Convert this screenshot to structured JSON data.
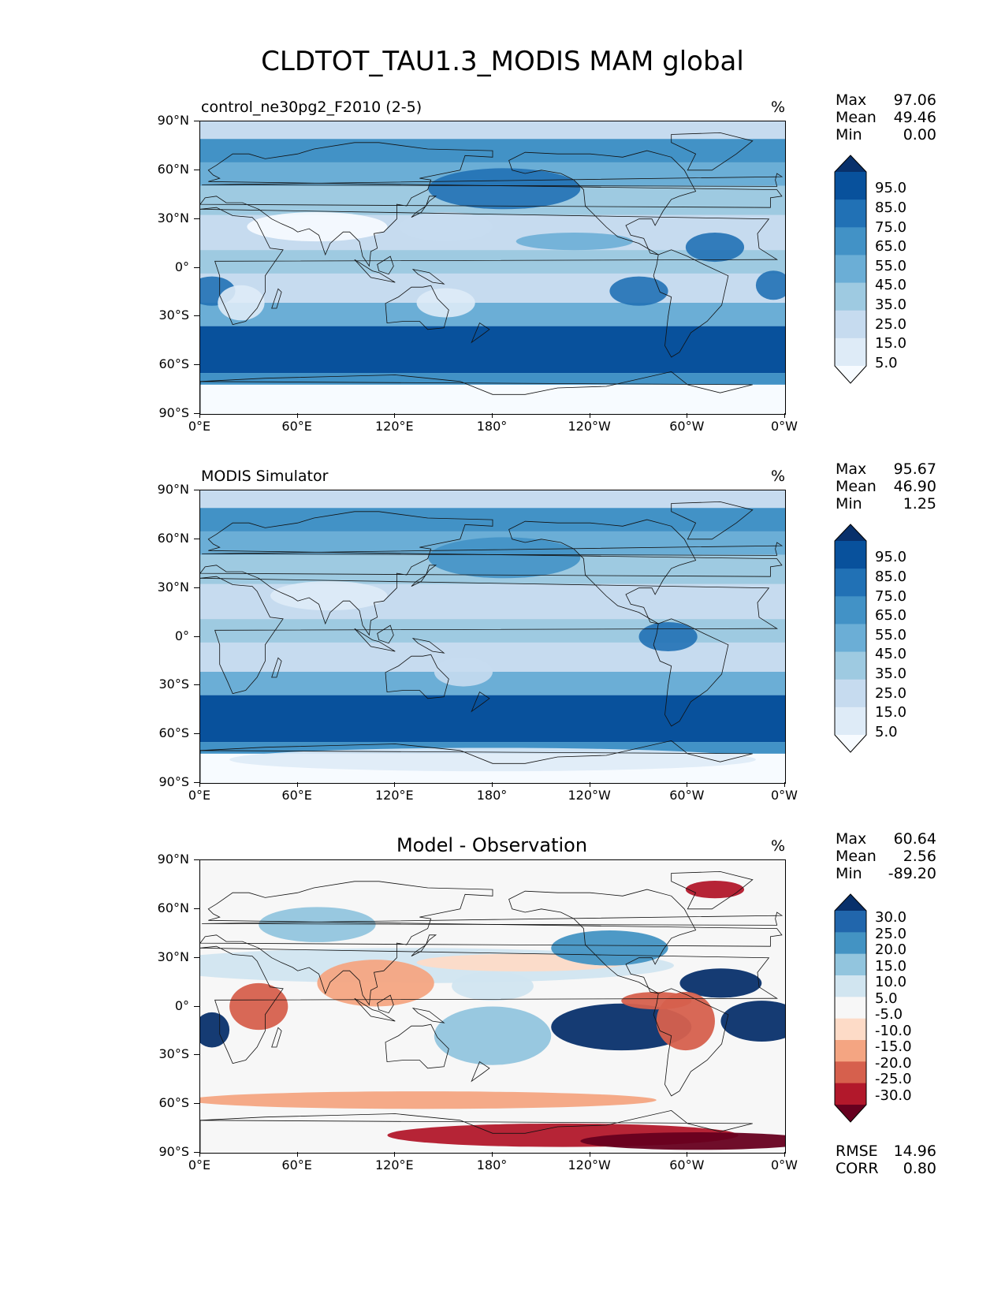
{
  "figure_title": "CLDTOT_TAU1.3_MODIS MAM global",
  "lat_labels": [
    "90°N",
    "60°N",
    "30°N",
    "0°",
    "30°S",
    "60°S",
    "90°S"
  ],
  "lon_labels": [
    "0°E",
    "60°E",
    "120°E",
    "180°",
    "120°W",
    "60°W",
    "0°W"
  ],
  "panels": [
    {
      "title": "control_ne30pg2_F2010 (2-5)",
      "title_style": "left",
      "units": "%",
      "stats": [
        {
          "label": "Max",
          "value": "97.06"
        },
        {
          "label": "Mean",
          "value": "49.46"
        },
        {
          "label": "Min",
          "value": "0.00"
        }
      ],
      "colorbar": {
        "labels": [
          "95.0",
          "85.0",
          "75.0",
          "65.0",
          "55.0",
          "45.0",
          "35.0",
          "25.0",
          "15.0",
          "5.0"
        ],
        "colors": [
          "#08306b",
          "#08519c",
          "#2171b5",
          "#4292c6",
          "#6baed6",
          "#9ecae1",
          "#c6dbef",
          "#deebf7",
          "#f7fbff"
        ]
      }
    },
    {
      "title": "MODIS Simulator",
      "title_style": "left",
      "units": "%",
      "stats": [
        {
          "label": "Max",
          "value": "95.67"
        },
        {
          "label": "Mean",
          "value": "46.90"
        },
        {
          "label": "Min",
          "value": "1.25"
        }
      ],
      "colorbar": {
        "labels": [
          "95.0",
          "85.0",
          "75.0",
          "65.0",
          "55.0",
          "45.0",
          "35.0",
          "25.0",
          "15.0",
          "5.0"
        ],
        "colors": [
          "#08306b",
          "#08519c",
          "#2171b5",
          "#4292c6",
          "#6baed6",
          "#9ecae1",
          "#c6dbef",
          "#deebf7",
          "#f7fbff"
        ]
      }
    },
    {
      "title": "Model - Observation",
      "title_style": "center",
      "units": "%",
      "stats": [
        {
          "label": "Max",
          "value": "60.64"
        },
        {
          "label": "Mean",
          "value": "2.56"
        },
        {
          "label": "Min",
          "value": "-89.20"
        }
      ],
      "colorbar": {
        "labels": [
          "30.0",
          "25.0",
          "20.0",
          "15.0",
          "10.0",
          "5.0",
          "-5.0",
          "-10.0",
          "-15.0",
          "-20.0",
          "-25.0",
          "-30.0"
        ],
        "colors": [
          "#08306b",
          "#2166ac",
          "#4393c3",
          "#92c5de",
          "#d1e5f0",
          "#f7f7f7",
          "#fddbc7",
          "#f4a582",
          "#d6604d",
          "#b2182b",
          "#67001f"
        ]
      },
      "extra_stats": [
        {
          "label": "RMSE",
          "value": "14.96"
        },
        {
          "label": "CORR",
          "value": "0.80"
        }
      ]
    }
  ]
}
